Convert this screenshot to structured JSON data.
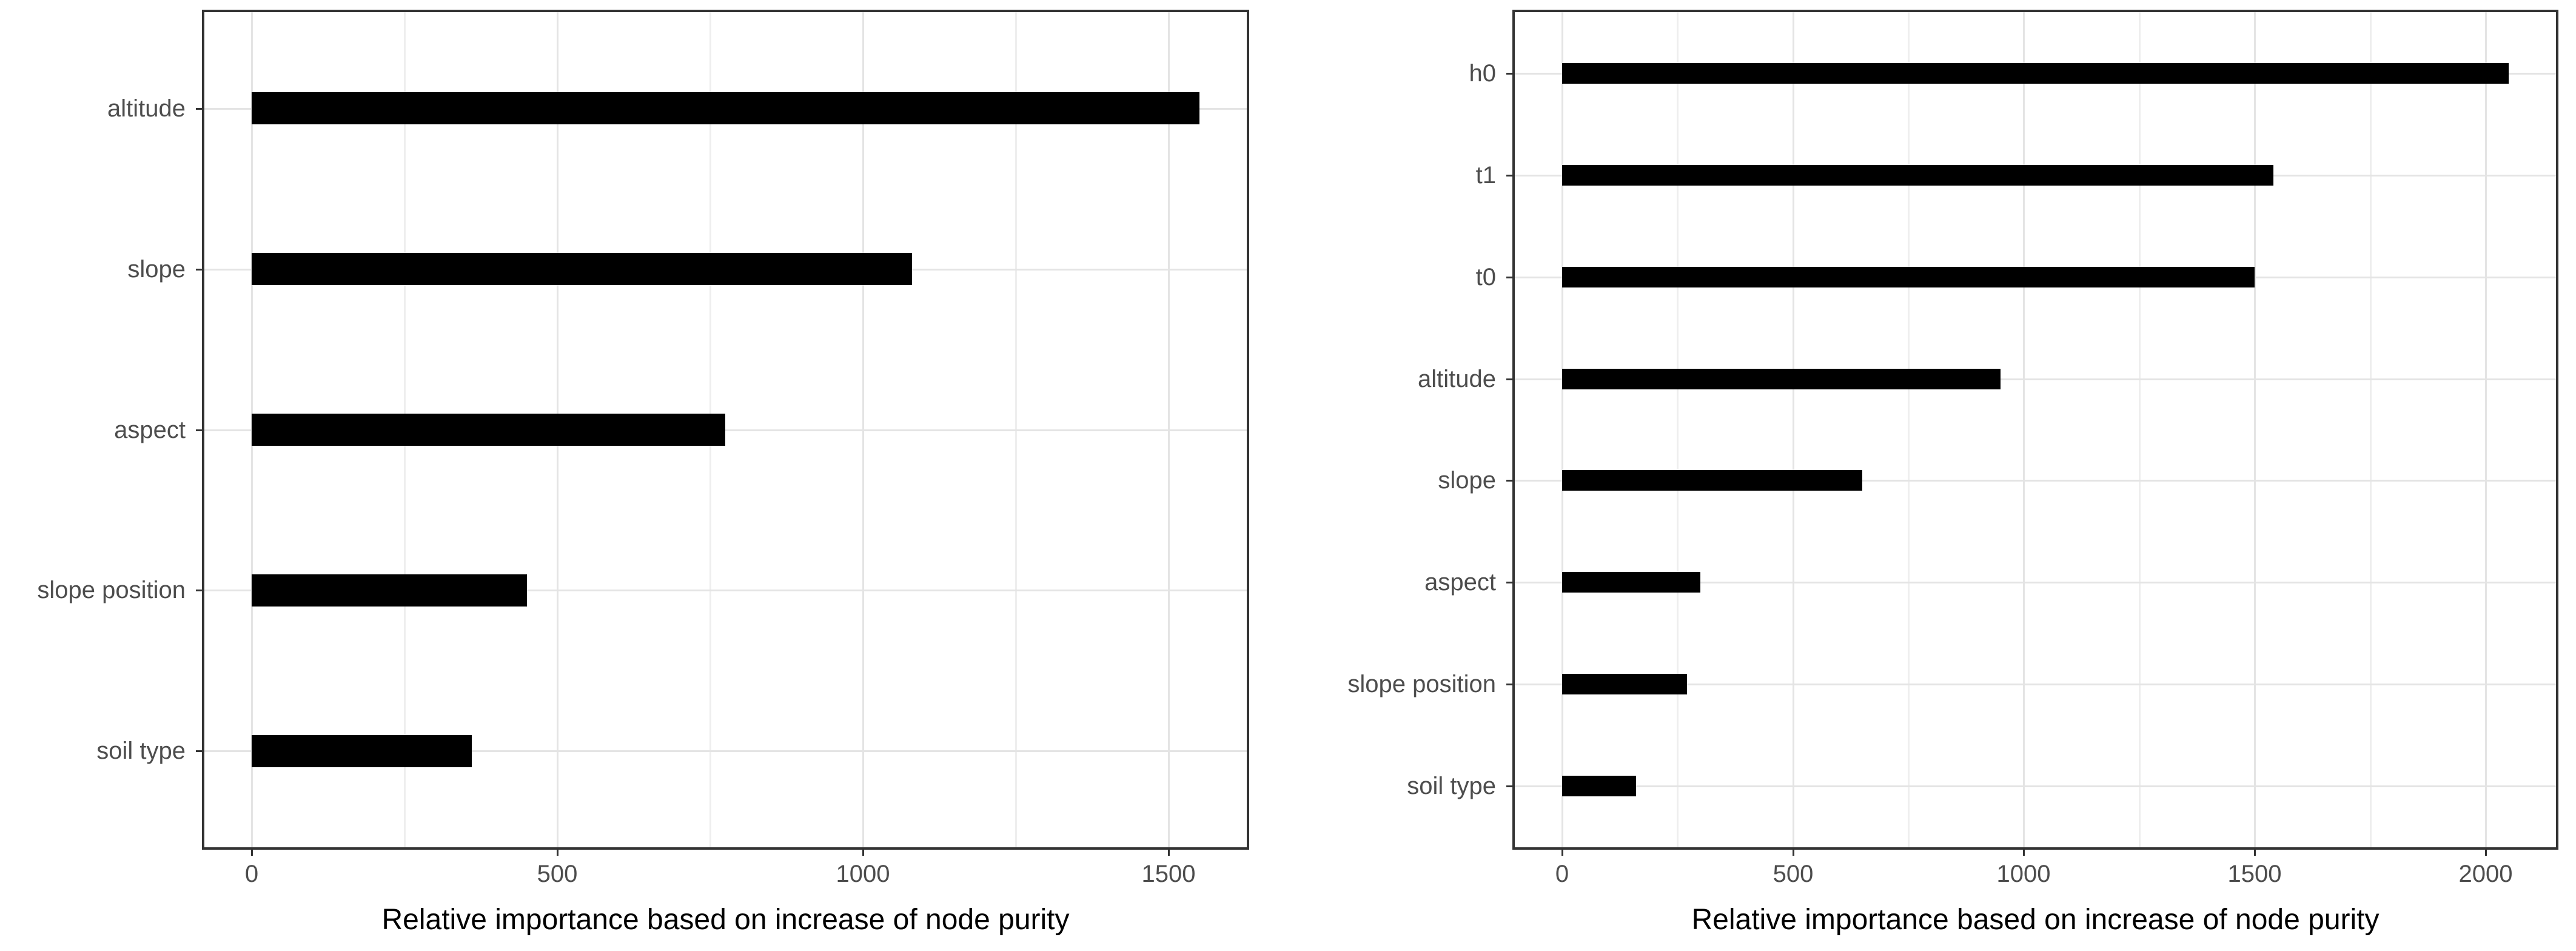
{
  "figure": {
    "description": "Two horizontal bar charts of relative variable importance",
    "background": "#ffffff"
  },
  "style_colors": {
    "bar": "#000000",
    "panel_border": "#333333",
    "grid_major": "#e4e4e4",
    "grid_minor": "#eeeeee",
    "tick_mark": "#333333",
    "tick_text": "#4d4d4d",
    "axis_title_text": "#000000",
    "background": "#ffffff"
  },
  "chart_data": [
    {
      "type": "bar",
      "orientation": "horizontal",
      "position": "left",
      "title": "",
      "xlabel": "Relative importance based on increase of node purity",
      "ylabel": "",
      "categories": [
        "altitude",
        "slope",
        "aspect",
        "slope position",
        "soil type"
      ],
      "values": [
        1550,
        1080,
        775,
        450,
        360
      ],
      "x_ticks": [
        0,
        500,
        1000,
        1500
      ],
      "x_minor_step": 250,
      "xlim": [
        -78,
        1630
      ],
      "grid": "on",
      "legend": "none",
      "bar_color": "#000000"
    },
    {
      "type": "bar",
      "orientation": "horizontal",
      "position": "right",
      "title": "",
      "xlabel": "Relative importance based on increase of node purity",
      "ylabel": "",
      "categories": [
        "h0",
        "t1",
        "t0",
        "altitude",
        "slope",
        "aspect",
        "slope position",
        "soil type"
      ],
      "values": [
        2050,
        1540,
        1500,
        950,
        650,
        300,
        270,
        160
      ],
      "x_ticks": [
        0,
        500,
        1000,
        1500,
        2000
      ],
      "x_minor_step": 250,
      "xlim": [
        -103,
        2155
      ],
      "grid": "on",
      "legend": "none",
      "bar_color": "#000000"
    }
  ]
}
